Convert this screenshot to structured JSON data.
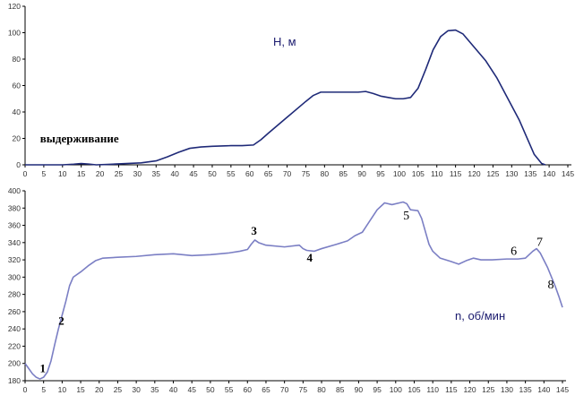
{
  "chart_data": [
    {
      "type": "line",
      "unit_label": "H, м",
      "xlim": [
        0,
        145
      ],
      "ylim": [
        0,
        120
      ],
      "x_ticks": [
        0,
        5,
        10,
        15,
        20,
        25,
        30,
        35,
        40,
        45,
        50,
        55,
        60,
        65,
        70,
        75,
        80,
        85,
        90,
        95,
        100,
        105,
        110,
        115,
        120,
        125,
        130,
        135,
        140,
        145
      ],
      "y_ticks": [
        0,
        20,
        40,
        60,
        80,
        100,
        120
      ],
      "grid": false,
      "series": [
        {
          "color": "#1f2a78",
          "points": [
            [
              0,
              0
            ],
            [
              10,
              0
            ],
            [
              13,
              0.5
            ],
            [
              15,
              1
            ],
            [
              17,
              0.6
            ],
            [
              19,
              0
            ],
            [
              22,
              0.3
            ],
            [
              27,
              1
            ],
            [
              31,
              1.5
            ],
            [
              35,
              3
            ],
            [
              38,
              6
            ],
            [
              41,
              9.5
            ],
            [
              44,
              12.5
            ],
            [
              47,
              13.5
            ],
            [
              50,
              14
            ],
            [
              55,
              14.5
            ],
            [
              58,
              14.5
            ],
            [
              61,
              15
            ],
            [
              63,
              19
            ],
            [
              65,
              24
            ],
            [
              70,
              36
            ],
            [
              75,
              48
            ],
            [
              77,
              52.5
            ],
            [
              79,
              55
            ],
            [
              82,
              55
            ],
            [
              86,
              55
            ],
            [
              89,
              55
            ],
            [
              91,
              55.5
            ],
            [
              93,
              54
            ],
            [
              95,
              52
            ],
            [
              97,
              51
            ],
            [
              99,
              50
            ],
            [
              101,
              50
            ],
            [
              103,
              51
            ],
            [
              105,
              58
            ],
            [
              107,
              72
            ],
            [
              109,
              87
            ],
            [
              111,
              97
            ],
            [
              113,
              101.5
            ],
            [
              115,
              102
            ],
            [
              117,
              99
            ],
            [
              120,
              89
            ],
            [
              123,
              79
            ],
            [
              126,
              66
            ],
            [
              129,
              50
            ],
            [
              132,
              34
            ],
            [
              134,
              21
            ],
            [
              136,
              8
            ],
            [
              138,
              1
            ],
            [
              139,
              0
            ]
          ]
        }
      ],
      "annotations": [
        {
          "text": "выдерживание",
          "x": 4,
          "y": 17
        }
      ]
    },
    {
      "type": "line",
      "unit_label": "n, об/мин",
      "xlim": [
        0,
        145
      ],
      "ylim": [
        180,
        400
      ],
      "x_ticks": [
        0,
        5,
        10,
        15,
        20,
        25,
        30,
        35,
        40,
        45,
        50,
        55,
        60,
        65,
        70,
        75,
        80,
        85,
        90,
        95,
        100,
        105,
        110,
        115,
        120,
        125,
        130,
        135,
        140,
        145
      ],
      "y_ticks": [
        180,
        200,
        220,
        240,
        260,
        280,
        300,
        320,
        340,
        360,
        380,
        400
      ],
      "grid": false,
      "series": [
        {
          "color": "#7b7fc4",
          "points": [
            [
              0,
              200
            ],
            [
              1,
              194
            ],
            [
              2,
              188
            ],
            [
              3,
              184
            ],
            [
              4,
              182
            ],
            [
              5,
              184
            ],
            [
              6,
              190
            ],
            [
              7,
              203
            ],
            [
              8,
              222
            ],
            [
              9,
              240
            ],
            [
              10,
              256
            ],
            [
              11,
              272
            ],
            [
              12,
              290
            ],
            [
              13,
              300
            ],
            [
              15,
              306
            ],
            [
              17,
              313
            ],
            [
              19,
              319
            ],
            [
              21,
              322
            ],
            [
              25,
              323
            ],
            [
              30,
              324
            ],
            [
              35,
              326
            ],
            [
              40,
              327
            ],
            [
              45,
              325
            ],
            [
              50,
              326
            ],
            [
              55,
              328
            ],
            [
              58,
              330
            ],
            [
              60,
              332
            ],
            [
              61,
              338
            ],
            [
              62,
              343
            ],
            [
              63,
              340
            ],
            [
              65,
              337
            ],
            [
              70,
              335
            ],
            [
              74,
              337
            ],
            [
              75,
              333
            ],
            [
              76,
              331
            ],
            [
              78,
              330
            ],
            [
              80,
              333
            ],
            [
              84,
              338
            ],
            [
              87,
              342
            ],
            [
              89,
              348
            ],
            [
              91,
              352
            ],
            [
              93,
              365
            ],
            [
              95,
              378
            ],
            [
              97,
              386
            ],
            [
              99,
              384
            ],
            [
              101,
              386
            ],
            [
              102,
              387
            ],
            [
              103,
              385
            ],
            [
              104,
              378
            ],
            [
              106,
              377
            ],
            [
              107,
              368
            ],
            [
              108,
              353
            ],
            [
              109,
              338
            ],
            [
              110,
              330
            ],
            [
              112,
              322
            ],
            [
              115,
              318
            ],
            [
              117,
              315
            ],
            [
              119,
              319
            ],
            [
              121,
              322
            ],
            [
              123,
              320
            ],
            [
              126,
              320
            ],
            [
              130,
              321
            ],
            [
              133,
              321
            ],
            [
              135,
              322
            ],
            [
              137,
              330
            ],
            [
              138,
              333
            ],
            [
              139,
              328
            ],
            [
              141,
              311
            ],
            [
              143,
              290
            ],
            [
              144,
              278
            ],
            [
              145,
              265
            ]
          ]
        }
      ],
      "annotations": [
        {
          "text": "1",
          "x": 4,
          "y": 190,
          "bold": true
        },
        {
          "text": "2",
          "x": 9,
          "y": 245,
          "bold": true
        },
        {
          "text": "3",
          "x": 61,
          "y": 349,
          "bold": true
        },
        {
          "text": "4",
          "x": 76,
          "y": 318,
          "bold": true
        },
        {
          "text": "5",
          "x": 102,
          "y": 367,
          "bold": false
        },
        {
          "text": "6",
          "x": 131,
          "y": 326,
          "bold": false
        },
        {
          "text": "7",
          "x": 138,
          "y": 336,
          "bold": false
        },
        {
          "text": "8",
          "x": 141,
          "y": 287,
          "bold": false
        }
      ]
    }
  ]
}
